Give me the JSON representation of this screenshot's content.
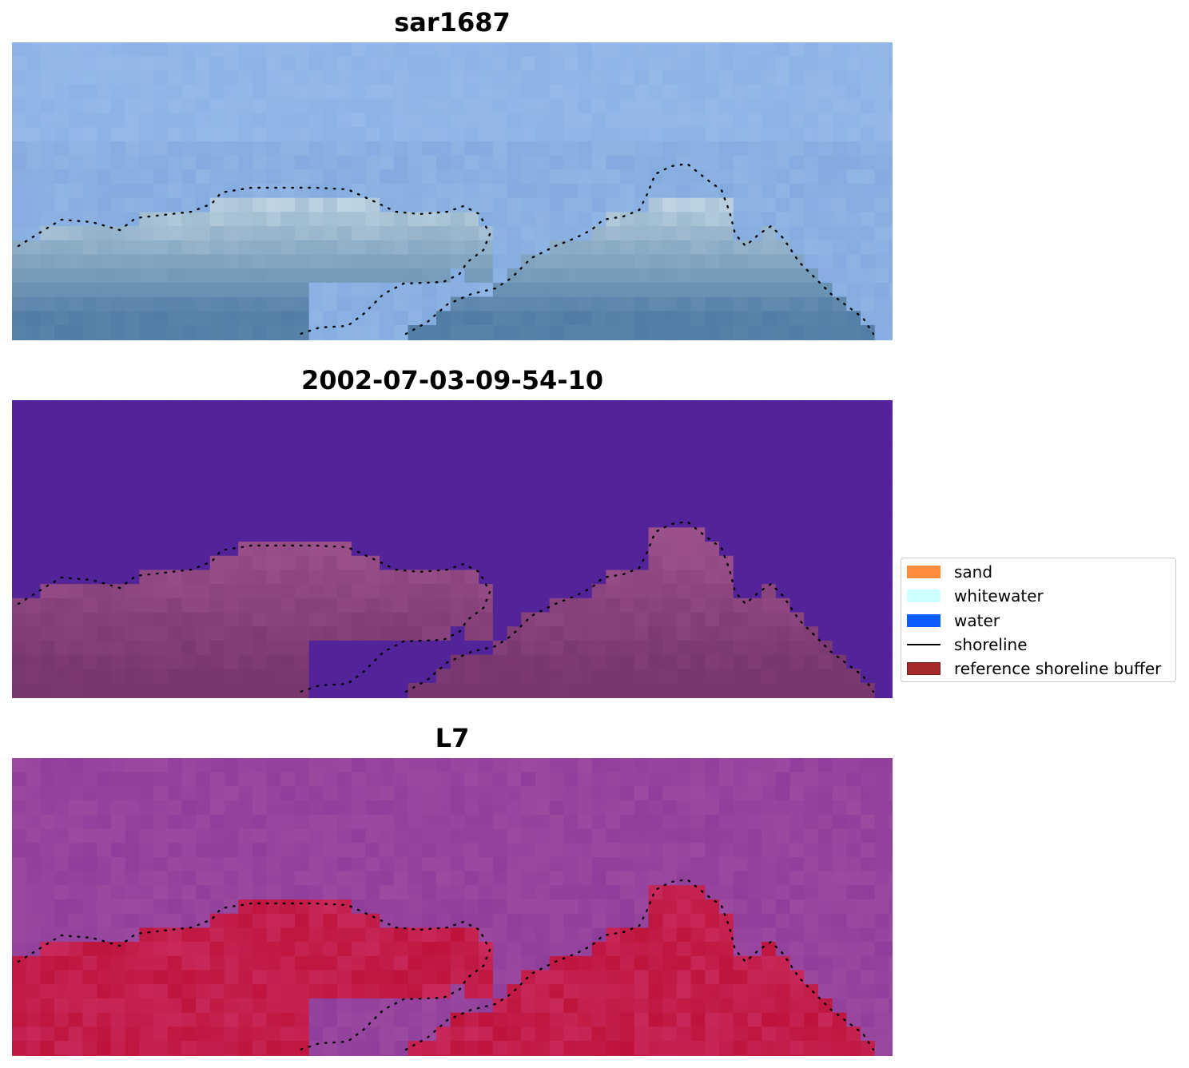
{
  "panels": [
    {
      "title": "sar1687",
      "kind": "rgb"
    },
    {
      "title": "2002-07-03-09-54-10",
      "kind": "classification"
    },
    {
      "title": "L7",
      "kind": "index"
    }
  ],
  "legend": {
    "items": [
      {
        "label": "sand",
        "color": "#ff8c3a",
        "symbol": "patch"
      },
      {
        "label": "whitewater",
        "color": "#ccffff",
        "symbol": "patch"
      },
      {
        "label": "water",
        "color": "#0a5cff",
        "symbol": "patch"
      },
      {
        "label": "shoreline",
        "color": "#000000",
        "symbol": "line"
      },
      {
        "label": "reference shoreline buffer",
        "color": "#a52a2a",
        "symbol": "patch"
      }
    ]
  },
  "colors": {
    "classification_background": "#53239a",
    "classification_land": "#8a3f7f",
    "sky_blue": "#8cb2e6",
    "index_magenta": "#9c4aa0",
    "index_red": "#c21440"
  }
}
